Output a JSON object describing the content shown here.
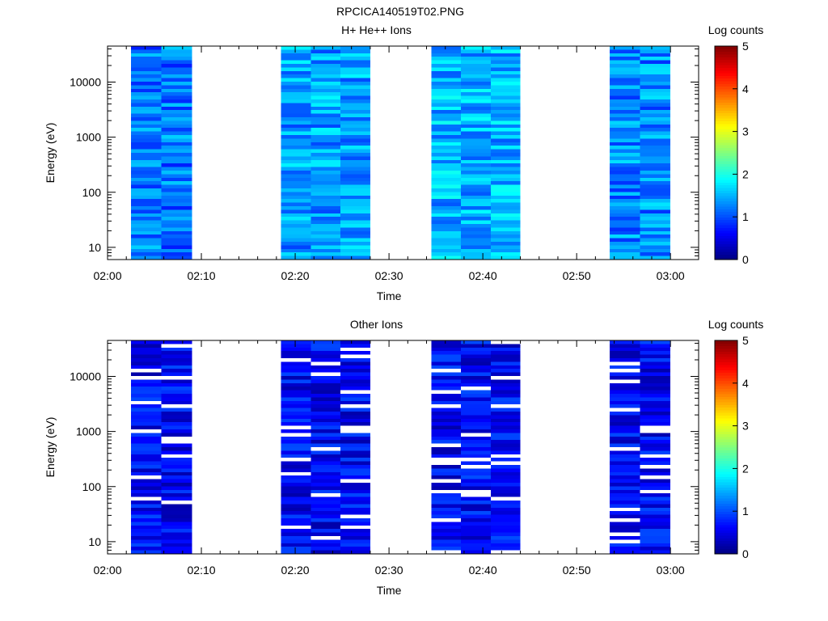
{
  "figure_title": "RPCICA140519T02.PNG",
  "chart_data": [
    {
      "type": "heatmap",
      "title": "H+ He++ Ions",
      "xlabel": "Time",
      "ylabel": "Energy (eV)",
      "y_scale": "log",
      "ylim": [
        6,
        45000
      ],
      "x_ticks": [
        "02:00",
        "02:10",
        "02:20",
        "02:30",
        "02:40",
        "02:50",
        "03:00"
      ],
      "y_ticks": [
        "10",
        "100",
        "1000",
        "10000"
      ],
      "colorbar": {
        "label": "Log counts",
        "range": [
          0,
          5
        ],
        "ticks": [
          "0",
          "1",
          "2",
          "3",
          "4",
          "5"
        ]
      },
      "xlim_minutes": [
        0,
        63
      ],
      "data_blocks": [
        {
          "start_min": 2.5,
          "end_min": 9.0,
          "columns": 2,
          "mean_log_counts": 1.2
        },
        {
          "start_min": 18.5,
          "end_min": 28.0,
          "columns": 3,
          "mean_log_counts": 1.4
        },
        {
          "start_min": 34.5,
          "end_min": 44.0,
          "columns": 3,
          "mean_log_counts": 1.5
        },
        {
          "start_min": 53.5,
          "end_min": 60.0,
          "columns": 2,
          "mean_log_counts": 1.3
        }
      ]
    },
    {
      "type": "heatmap",
      "title": "Other Ions",
      "xlabel": "Time",
      "ylabel": "Energy (eV)",
      "y_scale": "log",
      "ylim": [
        6,
        45000
      ],
      "x_ticks": [
        "02:00",
        "02:10",
        "02:20",
        "02:30",
        "02:40",
        "02:50",
        "03:00"
      ],
      "y_ticks": [
        "10",
        "100",
        "1000",
        "10000"
      ],
      "colorbar": {
        "label": "Log counts",
        "range": [
          0,
          5
        ],
        "ticks": [
          "0",
          "1",
          "2",
          "3",
          "4",
          "5"
        ]
      },
      "xlim_minutes": [
        0,
        63
      ],
      "data_blocks": [
        {
          "start_min": 2.5,
          "end_min": 9.0,
          "columns": 2,
          "mean_log_counts": 0.6
        },
        {
          "start_min": 18.5,
          "end_min": 28.0,
          "columns": 3,
          "mean_log_counts": 0.6
        },
        {
          "start_min": 34.5,
          "end_min": 44.0,
          "columns": 3,
          "mean_log_counts": 0.6
        },
        {
          "start_min": 53.5,
          "end_min": 60.0,
          "columns": 2,
          "mean_log_counts": 0.6
        }
      ]
    }
  ]
}
